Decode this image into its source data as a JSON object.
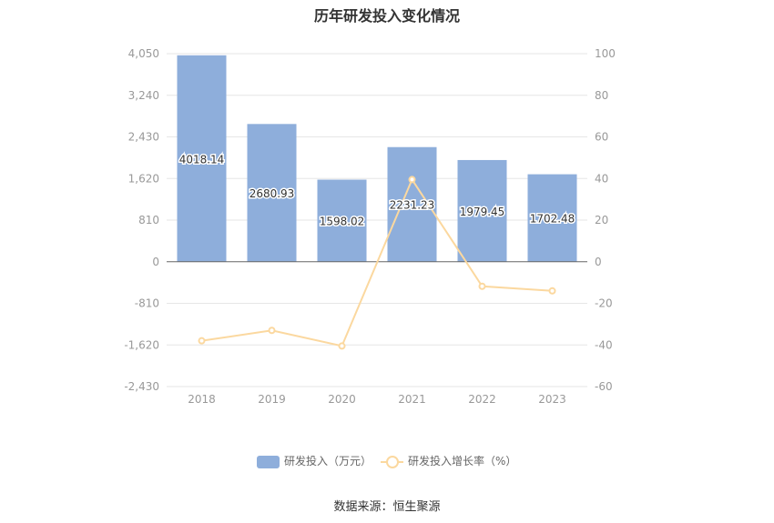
{
  "title": "历年研发投入变化情况",
  "source": "数据来源：恒生聚源",
  "colors": {
    "bar": "#8eaedb",
    "line": "#fbd89f",
    "grid": "#e6e6e6",
    "axis_text": "#999999",
    "axis_line": "#666666"
  },
  "chart_data": {
    "type": "bar",
    "categories": [
      "2018",
      "2019",
      "2020",
      "2021",
      "2022",
      "2023"
    ],
    "series": [
      {
        "name": "研发投入（万元）",
        "type": "bar",
        "axis": "left",
        "values": [
          4018.14,
          2680.93,
          1598.02,
          2231.23,
          1979.45,
          1702.48
        ],
        "labels": [
          "4018.14",
          "2680.93",
          "1598.02",
          "2231.23",
          "1979.45",
          "1702.48"
        ]
      },
      {
        "name": "研发投入增长率（%）",
        "type": "line",
        "axis": "right",
        "values": [
          -38,
          -33,
          -40.5,
          39.5,
          -11.8,
          -14
        ]
      }
    ],
    "y_left": {
      "min": -2430,
      "max": 4050,
      "ticks": [
        4050,
        3240,
        2430,
        1620,
        810,
        0,
        -810,
        -1620,
        -2430
      ],
      "tick_labels": [
        "4,050",
        "3,240",
        "2,430",
        "1,620",
        "810",
        "0",
        "-810",
        "-1,620",
        "-2,430"
      ]
    },
    "y_right": {
      "min": -60,
      "max": 100,
      "ticks": [
        100,
        80,
        60,
        40,
        20,
        0,
        -20,
        -40,
        -60
      ],
      "tick_labels": [
        "100",
        "80",
        "60",
        "40",
        "20",
        "0",
        "-20",
        "-40",
        "-60"
      ]
    },
    "grid": true,
    "legend_position": "bottom"
  }
}
